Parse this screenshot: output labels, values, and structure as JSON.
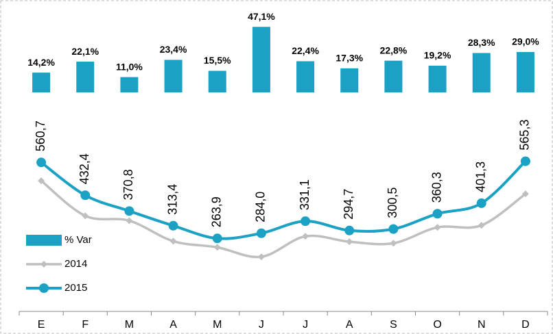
{
  "chart_data": {
    "type": "combo",
    "categories": [
      "E",
      "F",
      "M",
      "A",
      "M",
      "J",
      "J",
      "A",
      "S",
      "O",
      "N",
      "D"
    ],
    "ylim": [
      0,
      600
    ],
    "y2lim": [
      0,
      60
    ],
    "legend": "left",
    "series": [
      {
        "name": "% Var",
        "type": "bar",
        "axis": "y2",
        "color": "#1aa1c3",
        "values": [
          14.2,
          22.1,
          11.0,
          23.4,
          15.5,
          47.1,
          22.4,
          17.3,
          22.8,
          19.2,
          28.3,
          29.0
        ],
        "value_labels": [
          "14,2%",
          "22,1%",
          "11,0%",
          "23,4%",
          "15,5%",
          "47,1%",
          "22,4%",
          "17,3%",
          "22,8%",
          "19,2%",
          "28,3%",
          "29,0%"
        ]
      },
      {
        "name": "2014",
        "type": "line",
        "color": "#bfbfbf",
        "values": [
          489,
          352,
          333,
          253,
          229,
          192,
          272,
          251,
          245,
          307,
          315,
          438
        ]
      },
      {
        "name": "2015",
        "type": "line",
        "color": "#1aa1c3",
        "values": [
          560.7,
          432.4,
          370.8,
          313.4,
          263.9,
          284.0,
          331.1,
          294.7,
          300.5,
          360.3,
          401.3,
          565.3
        ],
        "value_labels": [
          "560,7",
          "432,4",
          "370,8",
          "313,4",
          "263,9",
          "284,0",
          "331,1",
          "294,7",
          "300,5",
          "360,3",
          "401,3",
          "565,3"
        ]
      }
    ]
  }
}
